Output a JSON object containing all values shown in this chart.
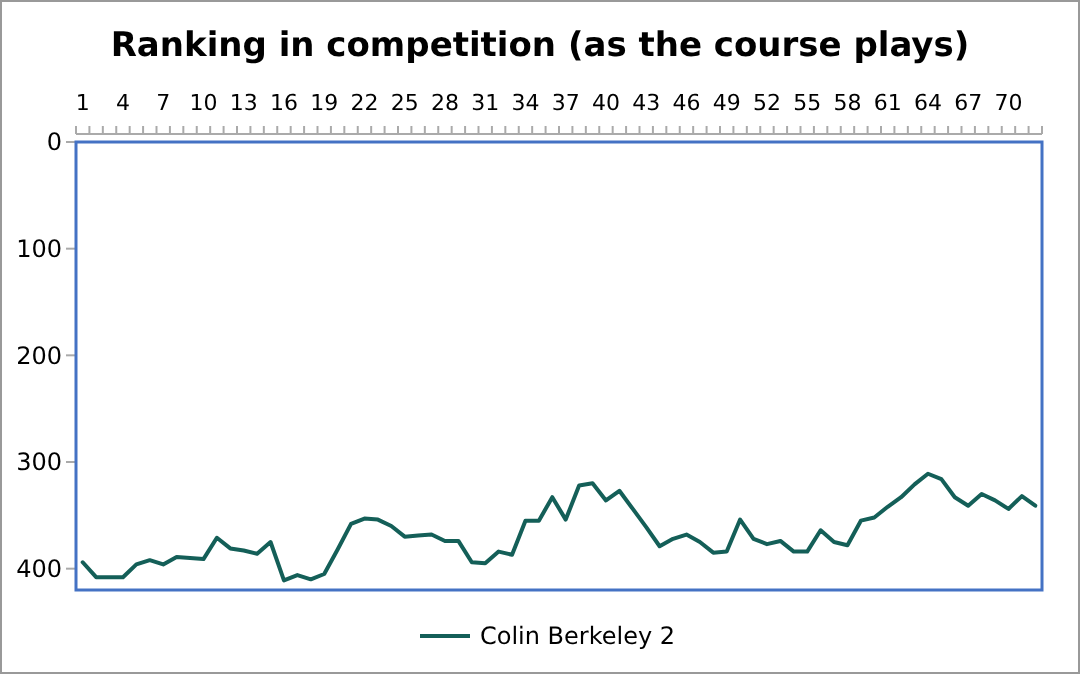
{
  "chart_data": {
    "type": "line",
    "title": "Ranking in competition (as the course plays)",
    "categories": [
      "1",
      null,
      null,
      "4",
      null,
      null,
      "7",
      null,
      null,
      "10",
      null,
      null,
      "13",
      null,
      null,
      "16",
      null,
      null,
      "19",
      null,
      null,
      "22",
      null,
      null,
      "25",
      null,
      null,
      "28",
      null,
      null,
      "31",
      null,
      null,
      "34",
      null,
      null,
      "37",
      null,
      null,
      "40",
      null,
      null,
      "43",
      null,
      null,
      "46",
      null,
      null,
      "49",
      null,
      null,
      "52",
      null,
      null,
      "55",
      null,
      null,
      "58",
      null,
      null,
      "61",
      null,
      null,
      "64",
      null,
      null,
      "67",
      null,
      null,
      "70",
      null,
      null
    ],
    "series": [
      {
        "name": "Colin Berkeley 2",
        "color": "#145f58",
        "values": [
          394,
          408,
          408,
          408,
          396,
          392,
          396,
          389,
          390,
          391,
          371,
          381,
          383,
          386,
          375,
          411,
          406,
          410,
          405,
          382,
          358,
          353,
          354,
          360,
          370,
          369,
          368,
          374,
          374,
          394,
          395,
          384,
          387,
          355,
          355,
          333,
          354,
          322,
          320,
          336,
          327,
          344,
          361,
          379,
          372,
          368,
          375,
          385,
          384,
          354,
          372,
          377,
          374,
          384,
          384,
          364,
          375,
          378,
          355,
          352,
          342,
          333,
          321,
          311,
          316,
          333,
          341,
          330,
          336,
          344,
          332,
          341
        ]
      }
    ],
    "ylim": [
      420,
      0
    ],
    "yticks": [
      0,
      100,
      200,
      300,
      400
    ],
    "grid": false,
    "legend": "bottom",
    "marker": "none",
    "line_style": "solid"
  }
}
